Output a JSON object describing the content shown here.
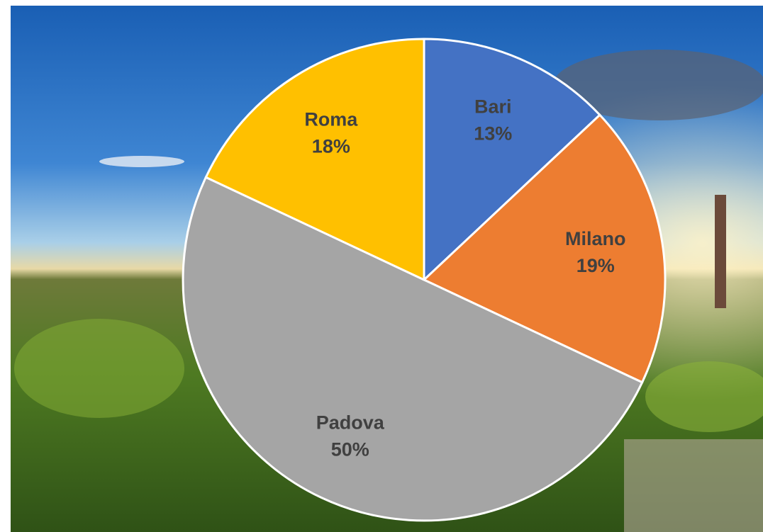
{
  "chart_data": {
    "type": "pie",
    "categories": [
      "Bari",
      "Milano",
      "Padova",
      "Roma"
    ],
    "values": [
      13,
      19,
      50,
      18
    ],
    "value_labels": [
      "13%",
      "19%",
      "50%",
      "18%"
    ],
    "colors": [
      "#4472c4",
      "#ed7d31",
      "#a5a5a5",
      "#ffc000"
    ]
  }
}
